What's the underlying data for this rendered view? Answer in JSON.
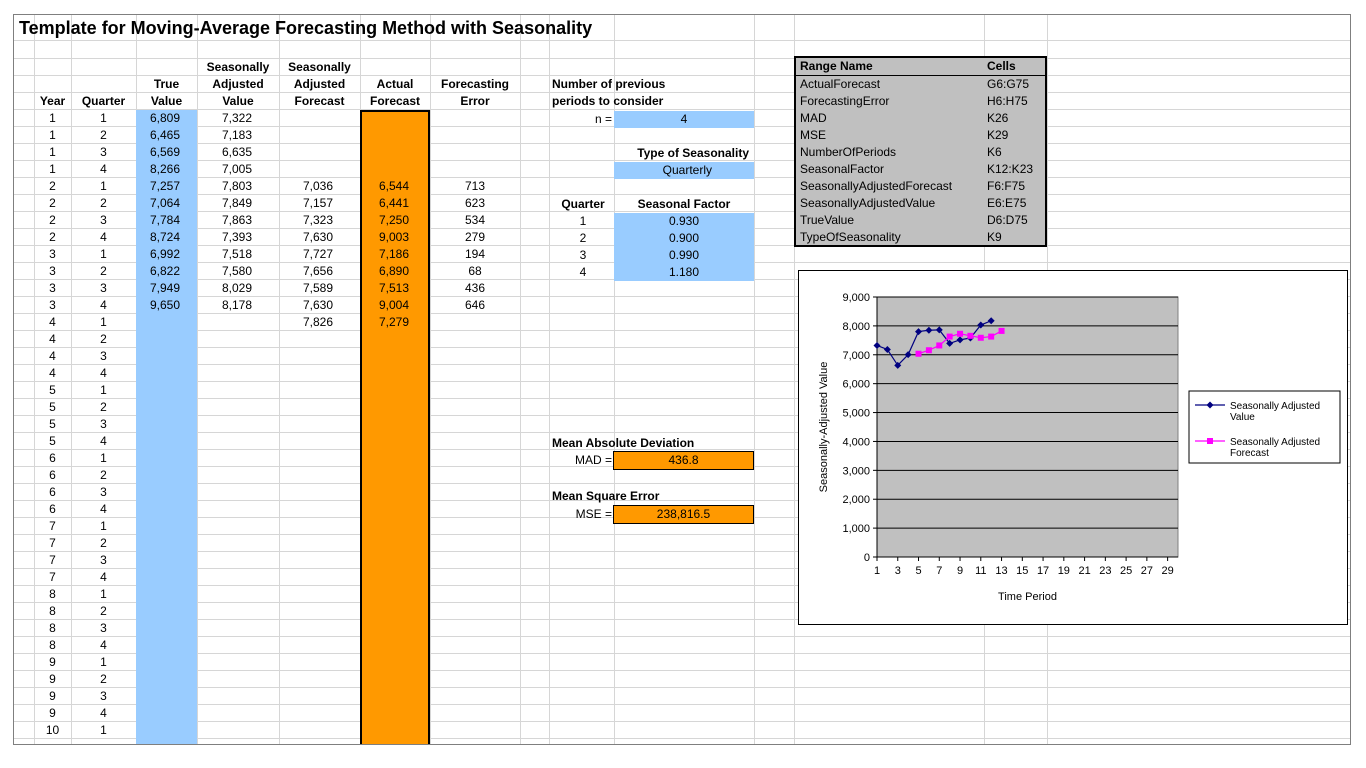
{
  "title": "Template for Moving-Average Forecasting Method with Seasonality",
  "headers": {
    "year": "Year",
    "quarter": "Quarter",
    "true_value": [
      "True",
      "Value"
    ],
    "sa_value": [
      "Seasonally",
      "Adjusted",
      "Value"
    ],
    "sa_forecast": [
      "Seasonally",
      "Adjusted",
      "Forecast"
    ],
    "actual_forecast": [
      "Actual",
      "Forecast"
    ],
    "forecasting_error": [
      "Forecasting",
      "Error"
    ]
  },
  "years": [
    "1",
    "1",
    "1",
    "1",
    "2",
    "2",
    "2",
    "2",
    "3",
    "3",
    "3",
    "3",
    "4",
    "4",
    "4",
    "4",
    "5",
    "5",
    "5",
    "5",
    "6",
    "6",
    "6",
    "6",
    "7",
    "7",
    "7",
    "7",
    "8",
    "8",
    "8",
    "8",
    "9",
    "9",
    "9",
    "9",
    "10"
  ],
  "quarters": [
    "1",
    "2",
    "3",
    "4",
    "1",
    "2",
    "3",
    "4",
    "1",
    "2",
    "3",
    "4",
    "1",
    "2",
    "3",
    "4",
    "1",
    "2",
    "3",
    "4",
    "1",
    "2",
    "3",
    "4",
    "1",
    "2",
    "3",
    "4",
    "1",
    "2",
    "3",
    "4",
    "1",
    "2",
    "3",
    "4",
    "1"
  ],
  "true_values": [
    "6,809",
    "6,465",
    "6,569",
    "8,266",
    "7,257",
    "7,064",
    "7,784",
    "8,724",
    "6,992",
    "6,822",
    "7,949",
    "9,650"
  ],
  "sa_values": [
    "7,322",
    "7,183",
    "6,635",
    "7,005",
    "7,803",
    "7,849",
    "7,863",
    "7,393",
    "7,518",
    "7,580",
    "8,029",
    "8,178"
  ],
  "sa_forecasts": [
    "",
    "",
    "",
    "",
    "7,036",
    "7,157",
    "7,323",
    "7,630",
    "7,727",
    "7,656",
    "7,589",
    "7,630",
    "7,826"
  ],
  "actual_forecasts": [
    "",
    "",
    "",
    "",
    "6,544",
    "6,441",
    "7,250",
    "9,003",
    "7,186",
    "6,890",
    "7,513",
    "9,004",
    "7,279"
  ],
  "forecasting_errors": [
    "",
    "",
    "",
    "",
    "713",
    "623",
    "534",
    "279",
    "194",
    "68",
    "436",
    "646"
  ],
  "params": {
    "periods_label_1": "Number of previous",
    "periods_label_2": "periods to consider",
    "n_label": "n =",
    "n_value": "4",
    "seasonality_label": "Type of Seasonality",
    "seasonality_value": "Quarterly",
    "quarter_header": "Quarter",
    "factor_header": "Seasonal Factor",
    "factor_quarters": [
      "1",
      "2",
      "3",
      "4"
    ],
    "factors": [
      "0.930",
      "0.900",
      "0.990",
      "1.180"
    ],
    "mad_title": "Mean Absolute Deviation",
    "mad_label": "MAD =",
    "mad_value": "436.8",
    "mse_title": "Mean Square Error",
    "mse_label": "MSE =",
    "mse_value": "238,816.5"
  },
  "range_names": {
    "header_name": "Range Name",
    "header_cells": "Cells",
    "rows": [
      {
        "name": "ActualForecast",
        "cells": "G6:G75"
      },
      {
        "name": "ForecastingError",
        "cells": "H6:H75"
      },
      {
        "name": "MAD",
        "cells": "K26"
      },
      {
        "name": "MSE",
        "cells": "K29"
      },
      {
        "name": "NumberOfPeriods",
        "cells": "K6"
      },
      {
        "name": "SeasonalFactor",
        "cells": "K12:K23"
      },
      {
        "name": "SeasonallyAdjustedForecast",
        "cells": "F6:F75"
      },
      {
        "name": "SeasonallyAdjustedValue",
        "cells": "E6:E75"
      },
      {
        "name": "TrueValue",
        "cells": "D6:D75"
      },
      {
        "name": "TypeOfSeasonality",
        "cells": "K9"
      }
    ]
  },
  "colors": {
    "input_blue": "#99ccff",
    "output_orange": "#ff9900",
    "range_gray": "#c0c0c0",
    "series1": "#000080",
    "series2": "#ff00ff",
    "plot_bg": "#c0c0c0"
  },
  "chart_data": {
    "type": "line",
    "xlabel": "Time Period",
    "ylabel": "Seasonally-Adjusted Value",
    "ylim": [
      0,
      9000
    ],
    "yticks": [
      0,
      1000,
      2000,
      3000,
      4000,
      5000,
      6000,
      7000,
      8000,
      9000
    ],
    "ytick_labels": [
      "0",
      "1,000",
      "2,000",
      "3,000",
      "4,000",
      "5,000",
      "6,000",
      "7,000",
      "8,000",
      "9,000"
    ],
    "xlim": [
      1,
      30
    ],
    "xticks": [
      1,
      3,
      5,
      7,
      9,
      11,
      13,
      15,
      17,
      19,
      21,
      23,
      25,
      27,
      29
    ],
    "grid": true,
    "legend": "right",
    "series": [
      {
        "name": "Seasonally Adjusted Value",
        "legend_lines": [
          "Seasonally Adjusted",
          "Value"
        ],
        "x": [
          1,
          2,
          3,
          4,
          5,
          6,
          7,
          8,
          9,
          10,
          11,
          12
        ],
        "values": [
          7322,
          7183,
          6635,
          7005,
          7803,
          7849,
          7863,
          7393,
          7518,
          7580,
          8029,
          8178
        ],
        "marker": "diamond"
      },
      {
        "name": "Seasonally Adjusted Forecast",
        "legend_lines": [
          "Seasonally Adjusted",
          "Forecast"
        ],
        "x": [
          5,
          6,
          7,
          8,
          9,
          10,
          11,
          12,
          13
        ],
        "values": [
          7036,
          7157,
          7323,
          7630,
          7727,
          7656,
          7589,
          7630,
          7826
        ],
        "marker": "square"
      }
    ]
  }
}
